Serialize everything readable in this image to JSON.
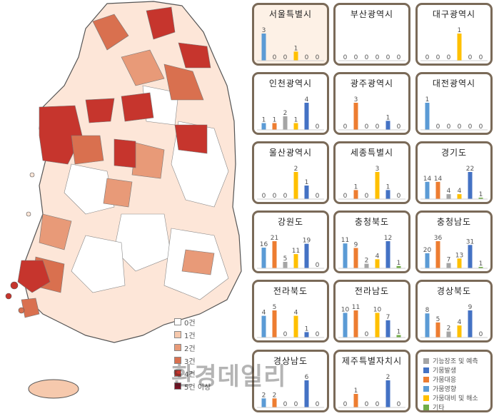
{
  "map": {
    "legend": [
      {
        "label": "0건",
        "color": "#ffffff"
      },
      {
        "label": "1건",
        "color": "#f6c9ad"
      },
      {
        "label": "2건",
        "color": "#e89a78"
      },
      {
        "label": "3건",
        "color": "#d9704f"
      },
      {
        "label": "4건",
        "color": "#c6352d"
      },
      {
        "label": "5건 이상",
        "color": "#7a1024"
      }
    ]
  },
  "series_colors": [
    "#5b9bd5",
    "#ed7d31",
    "#a5a5a5",
    "#ffc000",
    "#4472c4",
    "#70ad47"
  ],
  "categories_legend": [
    {
      "label": "기능장조 및 예측",
      "color": "#a5a5a5"
    },
    {
      "label": "기뭄발생",
      "color": "#4472c4"
    },
    {
      "label": "가뭄대응",
      "color": "#ed7d31"
    },
    {
      "label": "가뭄영향",
      "color": "#5b9bd5"
    },
    {
      "label": "가뭄대비 및 해소",
      "color": "#ffc000"
    },
    {
      "label": "기타",
      "color": "#70ad47"
    }
  ],
  "chart_data": [
    {
      "type": "bar",
      "title": "서울특별시",
      "values": [
        3,
        0,
        0,
        1,
        0,
        0
      ]
    },
    {
      "type": "bar",
      "title": "부산광역시",
      "values": [
        0,
        0,
        0,
        0,
        0,
        0
      ]
    },
    {
      "type": "bar",
      "title": "대구광역시",
      "values": [
        0,
        0,
        0,
        1,
        0,
        0
      ]
    },
    {
      "type": "bar",
      "title": "인천광역시",
      "values": [
        1,
        1,
        2,
        1,
        4,
        0
      ]
    },
    {
      "type": "bar",
      "title": "광주광역시",
      "values": [
        0,
        3,
        0,
        0,
        1,
        0
      ]
    },
    {
      "type": "bar",
      "title": "대전광역시",
      "values": [
        1,
        0,
        0,
        0,
        0,
        0
      ]
    },
    {
      "type": "bar",
      "title": "울산광역시",
      "values": [
        0,
        0,
        0,
        2,
        1,
        0
      ]
    },
    {
      "type": "bar",
      "title": "세종특별시",
      "values": [
        0,
        1,
        0,
        3,
        1,
        0
      ]
    },
    {
      "type": "bar",
      "title": "경기도",
      "values": [
        14,
        14,
        4,
        4,
        22,
        1
      ]
    },
    {
      "type": "bar",
      "title": "강원도",
      "values": [
        16,
        21,
        5,
        11,
        19,
        0
      ]
    },
    {
      "type": "bar",
      "title": "충청북도",
      "values": [
        11,
        9,
        2,
        4,
        12,
        1
      ]
    },
    {
      "type": "bar",
      "title": "충청남도",
      "values": [
        20,
        36,
        7,
        13,
        31,
        1
      ]
    },
    {
      "type": "bar",
      "title": "전라북도",
      "values": [
        4,
        5,
        0,
        4,
        1,
        0
      ]
    },
    {
      "type": "bar",
      "title": "전라남도",
      "values": [
        10,
        11,
        0,
        10,
        7,
        1
      ]
    },
    {
      "type": "bar",
      "title": "경상북도",
      "values": [
        8,
        5,
        2,
        4,
        9,
        0
      ]
    },
    {
      "type": "bar",
      "title": "경상남도",
      "values": [
        2,
        2,
        0,
        0,
        6,
        0
      ]
    },
    {
      "type": "bar",
      "title": "제주특별자치시",
      "values": [
        0,
        1,
        0,
        0,
        2,
        0
      ]
    }
  ],
  "watermark": "환경데일리"
}
